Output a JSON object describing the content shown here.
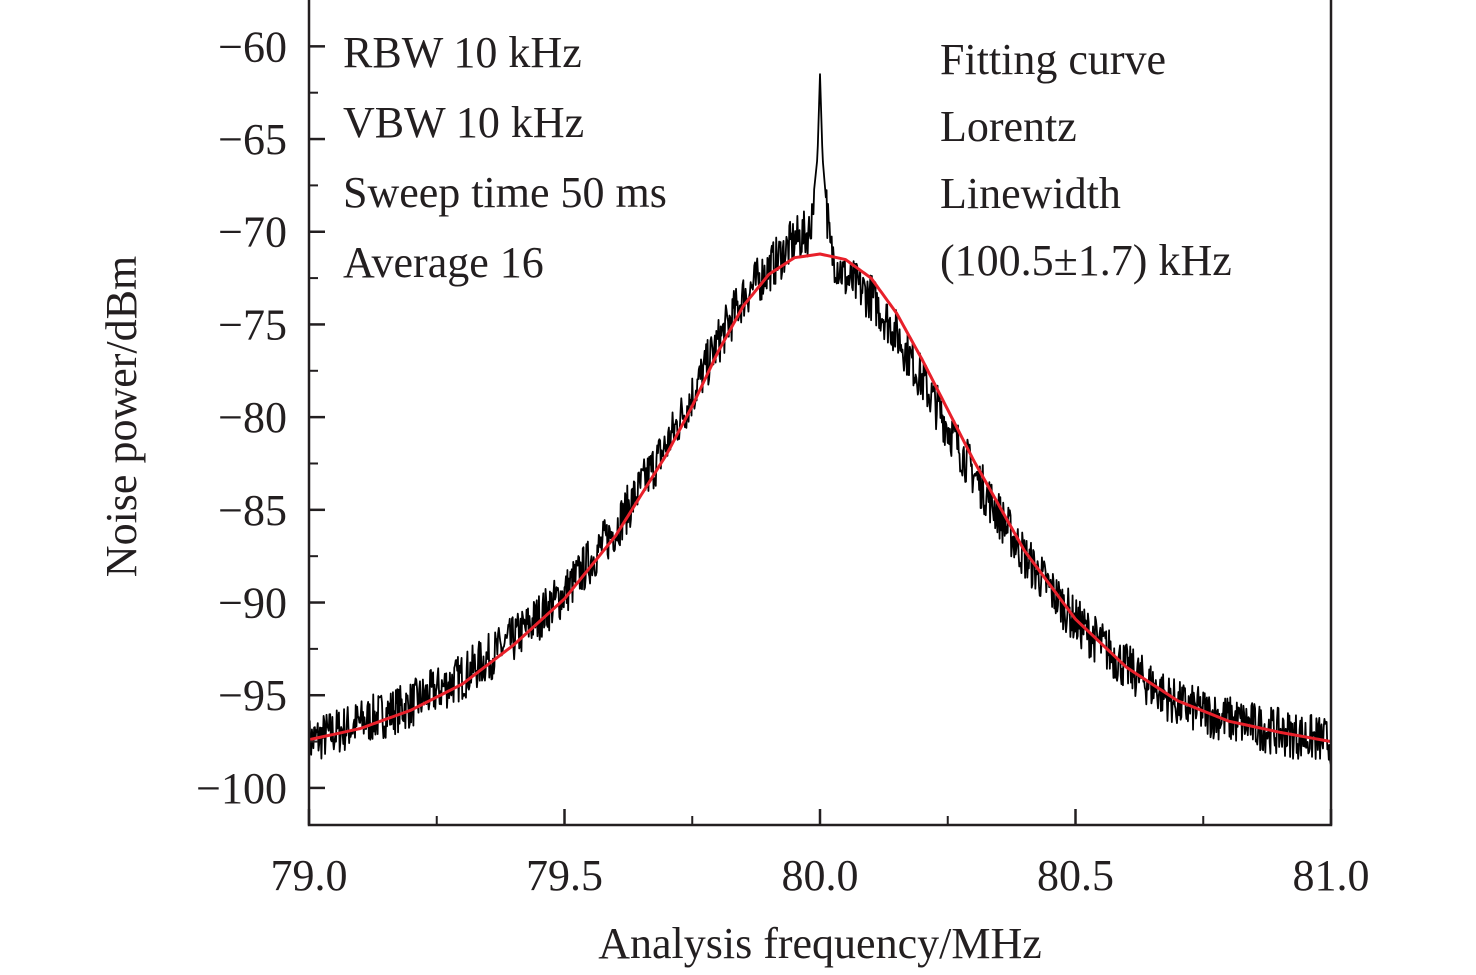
{
  "chart_data": {
    "type": "line",
    "title": "",
    "xlabel": "Analysis frequency/MHz",
    "ylabel": "Noise power/dBm",
    "xlim": [
      79.0,
      81.0
    ],
    "ylim": [
      -102,
      -57.5
    ],
    "x_ticks": [
      79.0,
      79.5,
      80.0,
      80.5,
      81.0
    ],
    "x_tick_labels": [
      "79.0",
      "79.5",
      "80.0",
      "80.5",
      "81.0"
    ],
    "x_minor_ticks": [
      79.25,
      79.75,
      80.25,
      80.75
    ],
    "y_ticks": [
      -60,
      -65,
      -70,
      -75,
      -80,
      -85,
      -90,
      -95,
      -100
    ],
    "y_tick_labels": [
      "−60",
      "−65",
      "−70",
      "−75",
      "−80",
      "−85",
      "−90",
      "−95",
      "−100"
    ],
    "y_minor_ticks": [
      -62.5,
      -67.5,
      -72.5,
      -77.5,
      -82.5,
      -87.5,
      -92.5,
      -97.5
    ],
    "grid": false,
    "legend": "none",
    "annotations_left": [
      "RBW 10 kHz",
      "VBW 10 kHz",
      "Sweep time 50 ms",
      "Average 16"
    ],
    "annotations_right": [
      "Fitting curve",
      "Lorentz",
      "Linewidth",
      "(100.5±1.7) kHz"
    ],
    "series": [
      {
        "kind": "measured",
        "color": "#000000",
        "x": [
          79.0,
          79.1,
          79.2,
          79.3,
          79.4,
          79.5,
          79.6,
          79.7,
          79.75,
          79.8,
          79.85,
          79.9,
          79.95,
          79.98,
          79.995,
          80.0,
          80.005,
          80.02,
          80.05,
          80.1,
          80.15,
          80.2,
          80.25,
          80.3,
          80.4,
          80.5,
          80.6,
          80.7,
          80.8,
          80.9,
          81.0
        ],
        "y": [
          -97.5,
          -96.5,
          -95.5,
          -94.0,
          -92.0,
          -89.5,
          -86.0,
          -81.5,
          -78.8,
          -76.0,
          -73.5,
          -72.0,
          -70.5,
          -70.0,
          -66.0,
          -61.5,
          -66.0,
          -71.0,
          -72.5,
          -73.5,
          -75.5,
          -78.0,
          -80.5,
          -83.0,
          -87.5,
          -91.0,
          -93.5,
          -95.5,
          -96.3,
          -97.0,
          -97.5
        ]
      },
      {
        "kind": "fit",
        "color": "#e8202a",
        "x": [
          79.0,
          79.1,
          79.2,
          79.3,
          79.4,
          79.5,
          79.6,
          79.7,
          79.75,
          79.8,
          79.85,
          79.9,
          79.95,
          80.0,
          80.05,
          80.1,
          80.15,
          80.2,
          80.25,
          80.3,
          80.4,
          80.5,
          80.6,
          80.7,
          80.8,
          80.9,
          81.0
        ],
        "y": [
          -97.4,
          -96.8,
          -95.8,
          -94.4,
          -92.3,
          -89.8,
          -86.4,
          -82.0,
          -79.4,
          -76.5,
          -74.0,
          -72.3,
          -71.4,
          -71.2,
          -71.5,
          -72.5,
          -74.4,
          -76.9,
          -79.6,
          -82.3,
          -87.2,
          -90.9,
          -93.5,
          -95.3,
          -96.4,
          -97.0,
          -97.5
        ]
      }
    ]
  },
  "colors": {
    "axis": "#231f20",
    "measured": "#000000",
    "fit": "#e8202a"
  }
}
